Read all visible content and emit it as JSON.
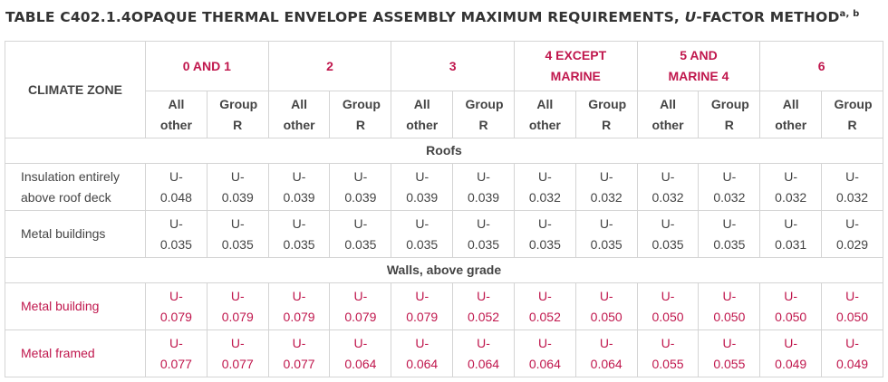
{
  "title": {
    "text": "TABLE C402.1.4OPAQUE THERMAL ENVELOPE ASSEMBLY MAXIMUM REQUIREMENTS, ",
    "italic": "U",
    "suffix": "-FACTOR METHOD",
    "superscript": "a, b"
  },
  "table": {
    "corner": "CLIMATE ZONE",
    "zones": [
      "0 AND 1",
      "2",
      "3",
      "4 EXCEPT MARINE",
      "5 AND MARINE 4",
      "6"
    ],
    "subheaders": [
      "All other",
      "Group R",
      "All other",
      "Group R",
      "All other",
      "Group R",
      "All other",
      "Group R",
      "All other",
      "Group R",
      "All other",
      "Group R"
    ],
    "sections": [
      {
        "title": "Roofs",
        "color": "#444444",
        "rows": [
          {
            "label": "Insulation entirely above roof deck",
            "values": [
              "U-0.048",
              "U-0.039",
              "U-0.039",
              "U-0.039",
              "U-0.039",
              "U-0.039",
              "U-0.032",
              "U-0.032",
              "U-0.032",
              "U-0.032",
              "U-0.032",
              "U-0.032"
            ]
          },
          {
            "label": "Metal buildings",
            "values": [
              "U-0.035",
              "U-0.035",
              "U-0.035",
              "U-0.035",
              "U-0.035",
              "U-0.035",
              "U-0.035",
              "U-0.035",
              "U-0.035",
              "U-0.035",
              "U-0.031",
              "U-0.029"
            ]
          }
        ]
      },
      {
        "title": "Walls, above grade",
        "color": "#c0174d",
        "rows": [
          {
            "label": "Metal building",
            "values": [
              "U-0.079",
              "U-0.079",
              "U-0.079",
              "U-0.079",
              "U-0.079",
              "U-0.052",
              "U-0.052",
              "U-0.050",
              "U-0.050",
              "U-0.050",
              "U-0.050",
              "U-0.050"
            ]
          },
          {
            "label": "Metal framed",
            "values": [
              "U-0.077",
              "U-0.077",
              "U-0.077",
              "U-0.064",
              "U-0.064",
              "U-0.064",
              "U-0.064",
              "U-0.064",
              "U-0.055",
              "U-0.055",
              "U-0.049",
              "U-0.049"
            ]
          }
        ]
      }
    ]
  }
}
